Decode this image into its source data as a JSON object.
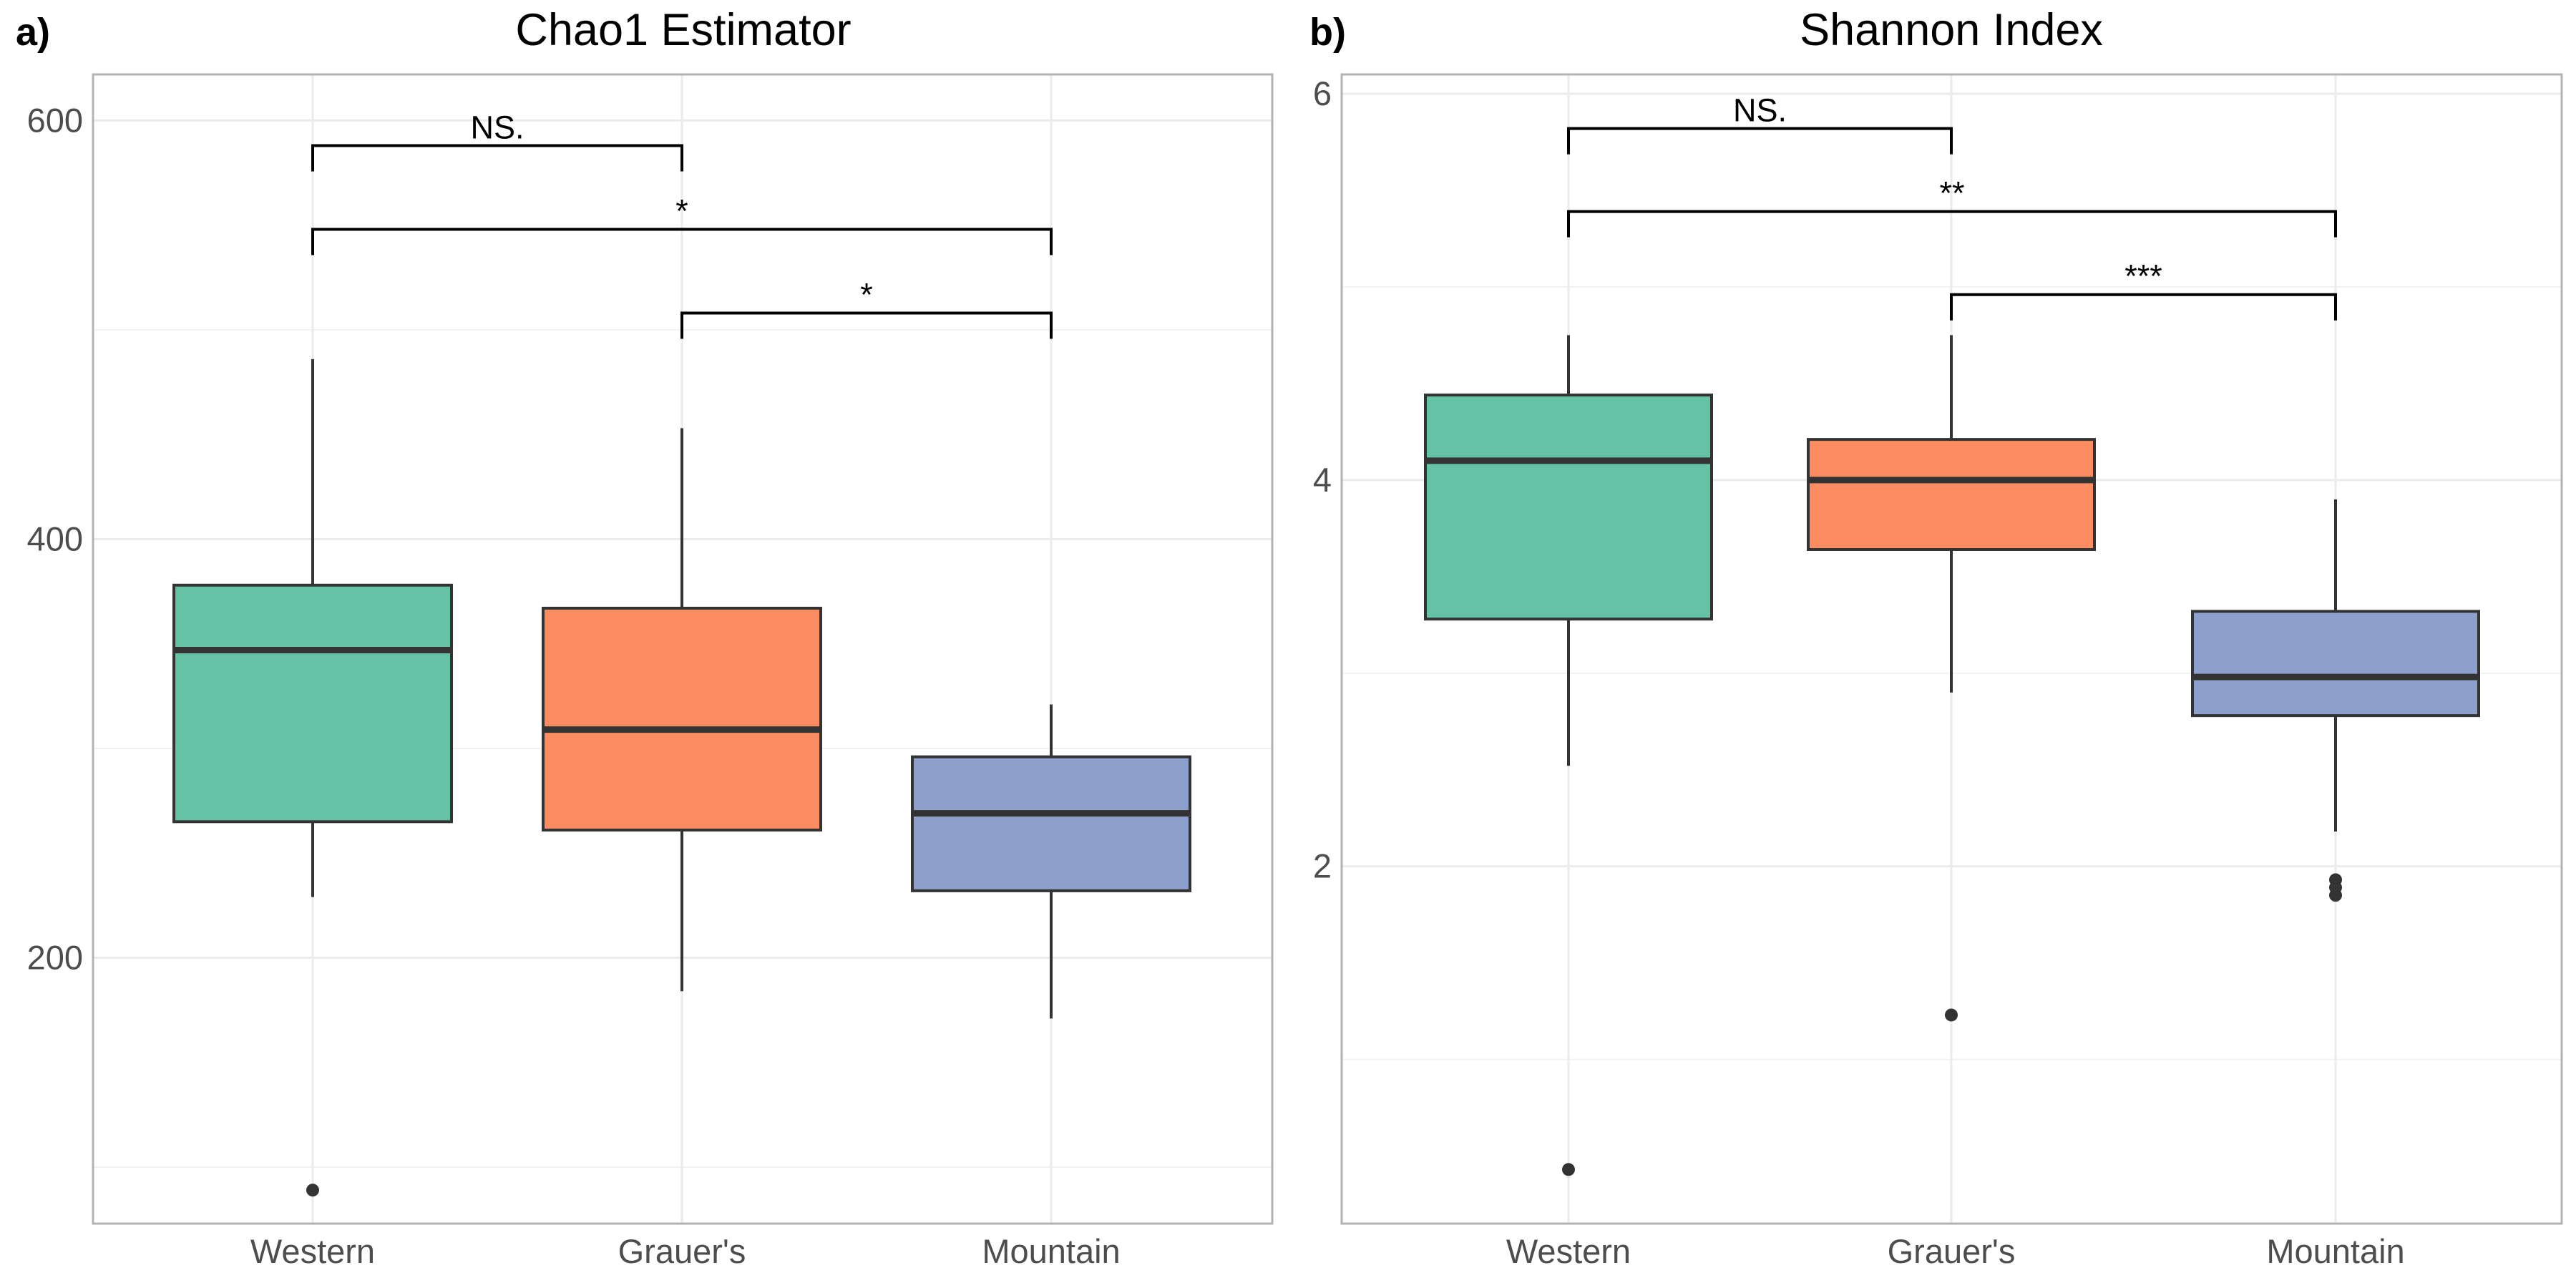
{
  "panels": [
    {
      "label": "a)",
      "title": "Chao1 Estimator"
    },
    {
      "label": "b)",
      "title": "Shannon Index"
    }
  ],
  "colors": {
    "Western": "#66c2a5",
    "Grauer's": "#fc8d62",
    "Mountain": "#8da0cb",
    "box_outline": "#333333",
    "grid": "#ebebeb",
    "panel_border": "#b3b3b3",
    "bracket": "#000000"
  },
  "chart_data": [
    {
      "type": "box",
      "title": "Chao1 Estimator",
      "panel_label": "a)",
      "categories": [
        "Western",
        "Grauer's",
        "Mountain"
      ],
      "ylim": [
        73,
        622
      ],
      "yticks": [
        200,
        400,
        600
      ],
      "ytick_labels": [
        "200",
        "400",
        "600"
      ],
      "grid": true,
      "boxes": [
        {
          "group": "Western",
          "whisker_low": 229,
          "q1": 265,
          "median": 347,
          "q3": 378,
          "whisker_high": 486,
          "outliers": [
            89
          ]
        },
        {
          "group": "Grauer's",
          "whisker_low": 184,
          "q1": 261,
          "median": 309,
          "q3": 367,
          "whisker_high": 453,
          "outliers": []
        },
        {
          "group": "Mountain",
          "whisker_low": 171,
          "q1": 232,
          "median": 269,
          "q3": 296,
          "whisker_high": 321,
          "outliers": []
        }
      ],
      "comparisons": [
        {
          "from": "Western",
          "to": "Grauer's",
          "label": "NS.",
          "y": 588
        },
        {
          "from": "Western",
          "to": "Mountain",
          "label": "*",
          "y": 548
        },
        {
          "from": "Grauer's",
          "to": "Mountain",
          "label": "*",
          "y": 508
        }
      ]
    },
    {
      "type": "box",
      "title": "Shannon Index",
      "panel_label": "b)",
      "categories": [
        "Western",
        "Grauer's",
        "Mountain"
      ],
      "ylim": [
        0.15,
        6.1
      ],
      "yticks": [
        2,
        4,
        6
      ],
      "ytick_labels": [
        "2",
        "4",
        "6"
      ],
      "grid": true,
      "boxes": [
        {
          "group": "Western",
          "whisker_low": 2.52,
          "q1": 3.28,
          "median": 4.1,
          "q3": 4.44,
          "whisker_high": 4.75,
          "outliers": [
            0.43
          ]
        },
        {
          "group": "Grauer's",
          "whisker_low": 2.9,
          "q1": 3.64,
          "median": 4.0,
          "q3": 4.21,
          "whisker_high": 4.75,
          "outliers": [
            1.23
          ]
        },
        {
          "group": "Mountain",
          "whisker_low": 2.18,
          "q1": 2.78,
          "median": 2.98,
          "q3": 3.32,
          "whisker_high": 3.9,
          "outliers": [
            1.93,
            1.89,
            1.85
          ]
        }
      ],
      "comparisons": [
        {
          "from": "Western",
          "to": "Grauer's",
          "label": "NS.",
          "y": 5.82
        },
        {
          "from": "Western",
          "to": "Mountain",
          "label": "**",
          "y": 5.39
        },
        {
          "from": "Grauer's",
          "to": "Mountain",
          "label": "***",
          "y": 4.96
        }
      ]
    }
  ]
}
